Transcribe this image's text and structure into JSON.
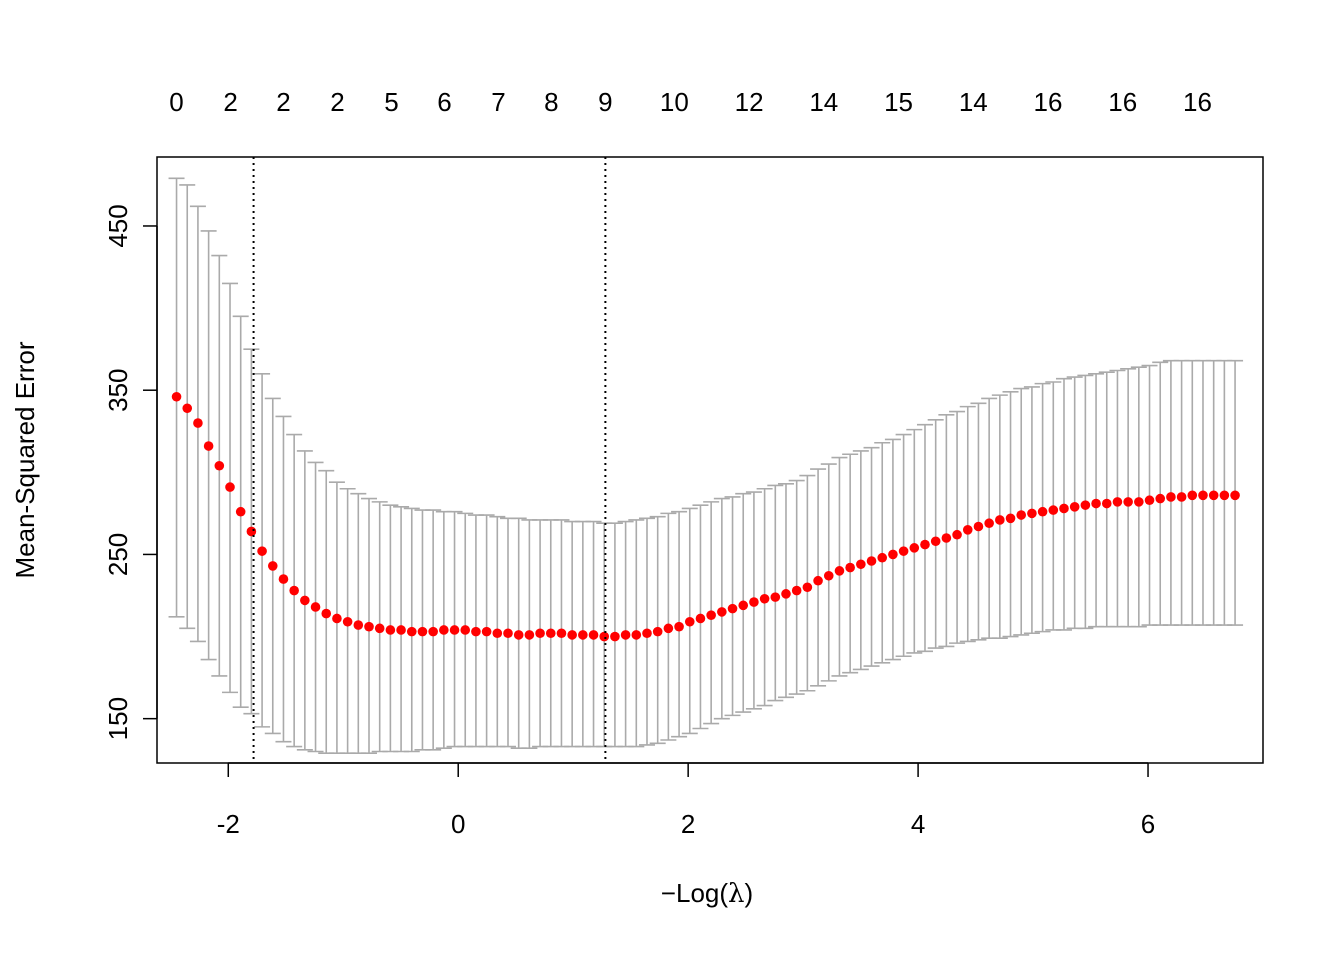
{
  "chart_data": {
    "type": "scatter",
    "title": "",
    "xlabel_parts": {
      "minus": "−",
      "log": "Log",
      "open": "(",
      "lambda": "λ",
      "close": ")"
    },
    "ylabel": "Mean-Squared Error",
    "xlim": [
      -2.62,
      7.0
    ],
    "ylim": [
      123,
      492
    ],
    "x_ticks": [
      -2,
      0,
      2,
      4,
      6
    ],
    "y_ticks": [
      150,
      250,
      350,
      450
    ],
    "top_axis": {
      "x": [
        -2.45,
        -1.98,
        -1.52,
        -1.05,
        -0.58,
        -0.12,
        0.35,
        0.81,
        1.28,
        1.88,
        2.53,
        3.18,
        3.83,
        4.48,
        5.13,
        5.78,
        6.43
      ],
      "labels": [
        "0",
        "2",
        "2",
        "2",
        "5",
        "6",
        "7",
        "8",
        "9",
        "10",
        "12",
        "14",
        "15",
        "14",
        "16",
        "16",
        "16"
      ]
    },
    "vlines": [
      -1.78,
      1.28
    ],
    "colors": {
      "points": "#ff0000",
      "errorbars": "#aaaaaa",
      "axes": "#000000",
      "vlines": "#000000"
    },
    "series": [
      {
        "x": [
          -2.45,
          -2.357,
          -2.264,
          -2.171,
          -2.078,
          -1.985,
          -1.892,
          -1.799,
          -1.706,
          -1.613,
          -1.52,
          -1.427,
          -1.334,
          -1.241,
          -1.148,
          -1.055,
          -0.962,
          -0.869,
          -0.776,
          -0.683,
          -0.59,
          -0.497,
          -0.404,
          -0.311,
          -0.218,
          -0.125,
          -0.032,
          0.061,
          0.154,
          0.247,
          0.34,
          0.433,
          0.526,
          0.619,
          0.712,
          0.805,
          0.898,
          0.991,
          1.084,
          1.177,
          1.27,
          1.363,
          1.456,
          1.549,
          1.642,
          1.735,
          1.828,
          1.921,
          2.014,
          2.107,
          2.2,
          2.293,
          2.386,
          2.479,
          2.572,
          2.665,
          2.758,
          2.851,
          2.944,
          3.037,
          3.13,
          3.223,
          3.316,
          3.409,
          3.502,
          3.595,
          3.688,
          3.781,
          3.874,
          3.967,
          4.06,
          4.153,
          4.246,
          4.339,
          4.432,
          4.525,
          4.618,
          4.711,
          4.804,
          4.897,
          4.99,
          5.083,
          5.176,
          5.269,
          5.362,
          5.455,
          5.548,
          5.641,
          5.734,
          5.827,
          5.92,
          6.013,
          6.106,
          6.199,
          6.292,
          6.385,
          6.478,
          6.571,
          6.664,
          6.757
        ],
        "y": [
          346,
          339,
          330,
          316,
          304,
          291,
          276,
          264,
          252,
          243,
          235,
          228,
          222,
          218,
          214,
          211,
          209,
          207,
          206,
          205,
          204,
          204,
          203,
          203,
          203,
          204,
          204,
          204,
          203,
          203,
          202,
          202,
          201,
          201,
          202,
          202,
          202,
          201,
          201,
          201,
          200,
          200,
          201,
          201,
          202,
          203,
          205,
          206,
          209,
          211,
          213,
          215,
          217,
          219,
          221,
          223,
          224,
          226,
          228,
          230,
          234,
          237,
          240,
          242,
          244,
          246,
          248,
          250,
          252,
          254,
          256,
          258,
          260,
          262,
          265,
          267,
          269,
          271,
          272,
          274,
          275,
          276,
          277,
          278,
          279,
          280,
          281,
          281,
          282,
          282,
          282,
          283,
          284,
          285,
          285,
          286,
          286,
          286,
          286,
          286
        ],
        "upper": [
          479,
          475,
          462,
          447,
          432,
          415,
          395,
          375,
          360,
          345,
          334,
          323,
          313,
          306,
          301,
          294,
          290,
          287,
          284,
          282,
          280,
          279,
          278,
          277,
          277,
          276,
          276,
          275,
          274,
          274,
          273,
          272,
          272,
          271,
          271,
          271,
          271,
          270,
          270,
          270,
          269,
          269,
          270,
          271,
          272,
          273,
          275,
          276,
          278,
          280,
          282,
          284,
          285,
          287,
          288,
          290,
          292,
          293,
          295,
          298,
          302,
          305,
          309,
          311,
          313,
          315,
          318,
          320,
          323,
          326,
          329,
          332,
          335,
          337,
          340,
          342,
          345,
          347,
          349,
          351,
          352,
          354,
          355,
          357,
          358,
          359,
          360,
          361,
          362,
          363,
          364,
          365,
          367,
          368,
          368,
          368,
          368,
          368,
          368,
          368
        ],
        "lower": [
          212,
          205,
          197,
          186,
          176,
          166,
          157,
          153,
          145,
          141,
          136,
          133,
          131,
          130,
          129,
          129,
          129,
          129,
          129,
          130,
          130,
          130,
          130,
          131,
          131,
          132,
          133,
          133,
          133,
          133,
          133,
          133,
          132,
          132,
          133,
          133,
          133,
          133,
          133,
          133,
          133,
          133,
          133,
          133,
          134,
          135,
          137,
          139,
          141,
          144,
          147,
          150,
          152,
          154,
          156,
          158,
          161,
          163,
          165,
          167,
          170,
          173,
          176,
          178,
          180,
          182,
          184,
          186,
          188,
          190,
          191,
          193,
          194,
          196,
          197,
          198,
          199,
          199,
          200,
          201,
          202,
          203,
          204,
          204,
          205,
          205,
          206,
          206,
          206,
          206,
          206,
          207,
          207,
          207,
          207,
          207,
          207,
          207,
          207,
          207
        ]
      }
    ]
  }
}
